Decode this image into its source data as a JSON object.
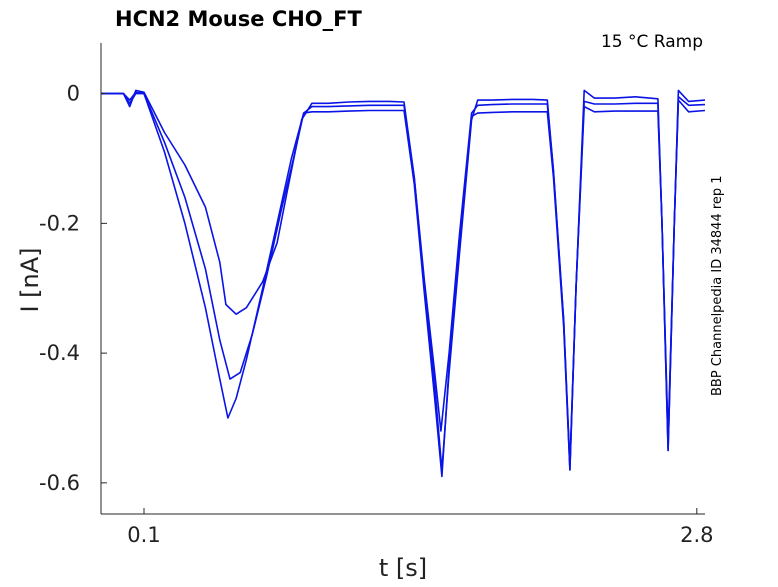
{
  "chart_data": {
    "type": "line",
    "title": "HCN2  Mouse  CHO_FT",
    "annotation": "15 °C  Ramp",
    "side_note": "BBP Channelpedia ID 34844 rep 1",
    "xlabel": "t [s]",
    "ylabel": "I [nA]",
    "xlim": [
      -0.11,
      2.84
    ],
    "ylim": [
      -0.648,
      0.078
    ],
    "x_ticks": [
      {
        "value": 0.1,
        "label": "0.1"
      },
      {
        "value": 2.8,
        "label": "2.8"
      }
    ],
    "y_ticks": [
      {
        "value": 0,
        "label": "0"
      },
      {
        "value": -0.2,
        "label": "-0.2"
      },
      {
        "value": -0.4,
        "label": "-0.4"
      },
      {
        "value": -0.6,
        "label": "-0.6"
      }
    ],
    "grid": false,
    "line_color": "#0a14e6",
    "series": [
      {
        "values": [
          [
            -0.11,
            0.0
          ],
          [
            0.0,
            0.0
          ],
          [
            0.03,
            -0.02
          ],
          [
            0.06,
            0.005
          ],
          [
            0.1,
            0.002
          ],
          [
            0.2,
            -0.06
          ],
          [
            0.3,
            -0.11
          ],
          [
            0.4,
            -0.175
          ],
          [
            0.47,
            -0.26
          ],
          [
            0.5,
            -0.325
          ],
          [
            0.55,
            -0.34
          ],
          [
            0.6,
            -0.33
          ],
          [
            0.68,
            -0.29
          ],
          [
            0.75,
            -0.23
          ],
          [
            0.8,
            -0.15
          ],
          [
            0.87,
            -0.04
          ],
          [
            0.92,
            -0.015
          ],
          [
            1.0,
            -0.015
          ],
          [
            1.1,
            -0.013
          ],
          [
            1.2,
            -0.012
          ],
          [
            1.3,
            -0.012
          ],
          [
            1.37,
            -0.013
          ],
          [
            1.42,
            -0.13
          ],
          [
            1.47,
            -0.3
          ],
          [
            1.52,
            -0.45
          ],
          [
            1.555,
            -0.58
          ],
          [
            1.59,
            -0.43
          ],
          [
            1.64,
            -0.25
          ],
          [
            1.7,
            -0.04
          ],
          [
            1.73,
            -0.01
          ],
          [
            1.8,
            -0.01
          ],
          [
            1.9,
            -0.009
          ],
          [
            2.0,
            -0.009
          ],
          [
            2.07,
            -0.01
          ],
          [
            2.1,
            -0.12
          ],
          [
            2.15,
            -0.35
          ],
          [
            2.18,
            -0.58
          ],
          [
            2.21,
            -0.3
          ],
          [
            2.25,
            0.005
          ],
          [
            2.3,
            -0.007
          ],
          [
            2.4,
            -0.007
          ],
          [
            2.5,
            -0.005
          ],
          [
            2.61,
            -0.008
          ],
          [
            2.63,
            -0.2
          ],
          [
            2.66,
            -0.55
          ],
          [
            2.69,
            -0.2
          ],
          [
            2.71,
            0.005
          ],
          [
            2.76,
            -0.012
          ],
          [
            2.84,
            -0.01
          ]
        ]
      },
      {
        "values": [
          [
            -0.11,
            0.0
          ],
          [
            0.0,
            0.0
          ],
          [
            0.03,
            -0.01
          ],
          [
            0.06,
            0.002
          ],
          [
            0.1,
            0.0
          ],
          [
            0.2,
            -0.075
          ],
          [
            0.3,
            -0.16
          ],
          [
            0.4,
            -0.27
          ],
          [
            0.47,
            -0.38
          ],
          [
            0.52,
            -0.44
          ],
          [
            0.57,
            -0.43
          ],
          [
            0.63,
            -0.37
          ],
          [
            0.7,
            -0.28
          ],
          [
            0.77,
            -0.18
          ],
          [
            0.83,
            -0.1
          ],
          [
            0.88,
            -0.03
          ],
          [
            0.92,
            -0.02
          ],
          [
            1.0,
            -0.02
          ],
          [
            1.1,
            -0.019
          ],
          [
            1.2,
            -0.018
          ],
          [
            1.3,
            -0.018
          ],
          [
            1.37,
            -0.018
          ],
          [
            1.42,
            -0.13
          ],
          [
            1.47,
            -0.29
          ],
          [
            1.52,
            -0.43
          ],
          [
            1.55,
            -0.52
          ],
          [
            1.59,
            -0.4
          ],
          [
            1.64,
            -0.22
          ],
          [
            1.7,
            -0.03
          ],
          [
            1.73,
            -0.018
          ],
          [
            1.8,
            -0.017
          ],
          [
            1.9,
            -0.016
          ],
          [
            2.0,
            -0.016
          ],
          [
            2.07,
            -0.016
          ],
          [
            2.1,
            -0.12
          ],
          [
            2.15,
            -0.35
          ],
          [
            2.18,
            -0.57
          ],
          [
            2.21,
            -0.3
          ],
          [
            2.25,
            -0.012
          ],
          [
            2.3,
            -0.016
          ],
          [
            2.4,
            -0.016
          ],
          [
            2.5,
            -0.015
          ],
          [
            2.61,
            -0.015
          ],
          [
            2.63,
            -0.2
          ],
          [
            2.66,
            -0.53
          ],
          [
            2.69,
            -0.2
          ],
          [
            2.71,
            -0.005
          ],
          [
            2.76,
            -0.018
          ],
          [
            2.84,
            -0.017
          ]
        ]
      },
      {
        "values": [
          [
            -0.11,
            0.0
          ],
          [
            0.0,
            0.0
          ],
          [
            0.03,
            -0.015
          ],
          [
            0.06,
            0.0
          ],
          [
            0.1,
            0.0
          ],
          [
            0.2,
            -0.09
          ],
          [
            0.3,
            -0.2
          ],
          [
            0.4,
            -0.33
          ],
          [
            0.47,
            -0.44
          ],
          [
            0.51,
            -0.5
          ],
          [
            0.55,
            -0.47
          ],
          [
            0.6,
            -0.41
          ],
          [
            0.68,
            -0.3
          ],
          [
            0.75,
            -0.2
          ],
          [
            0.82,
            -0.1
          ],
          [
            0.88,
            -0.03
          ],
          [
            0.92,
            -0.028
          ],
          [
            1.0,
            -0.028
          ],
          [
            1.1,
            -0.027
          ],
          [
            1.2,
            -0.026
          ],
          [
            1.3,
            -0.026
          ],
          [
            1.37,
            -0.026
          ],
          [
            1.42,
            -0.14
          ],
          [
            1.47,
            -0.31
          ],
          [
            1.52,
            -0.47
          ],
          [
            1.555,
            -0.59
          ],
          [
            1.59,
            -0.42
          ],
          [
            1.64,
            -0.23
          ],
          [
            1.7,
            -0.035
          ],
          [
            1.73,
            -0.03
          ],
          [
            1.8,
            -0.029
          ],
          [
            1.9,
            -0.028
          ],
          [
            2.0,
            -0.028
          ],
          [
            2.07,
            -0.028
          ],
          [
            2.1,
            -0.13
          ],
          [
            2.15,
            -0.36
          ],
          [
            2.18,
            -0.58
          ],
          [
            2.21,
            -0.3
          ],
          [
            2.25,
            -0.02
          ],
          [
            2.3,
            -0.028
          ],
          [
            2.4,
            -0.027
          ],
          [
            2.5,
            -0.027
          ],
          [
            2.61,
            -0.027
          ],
          [
            2.63,
            -0.2
          ],
          [
            2.66,
            -0.55
          ],
          [
            2.69,
            -0.2
          ],
          [
            2.71,
            -0.01
          ],
          [
            2.76,
            -0.028
          ],
          [
            2.84,
            -0.026
          ]
        ]
      }
    ]
  }
}
